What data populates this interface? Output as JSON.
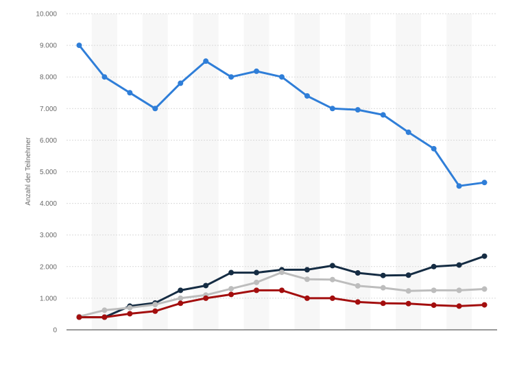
{
  "chart_data": {
    "type": "line",
    "title": "",
    "xlabel": "",
    "ylabel": "Anzahl der Teilnehmer",
    "ylim": [
      0,
      10000
    ],
    "yticks": [
      0,
      1000,
      2000,
      3000,
      4000,
      5000,
      6000,
      7000,
      8000,
      9000,
      10000
    ],
    "ytick_labels": [
      "0",
      "1.000",
      "2.000",
      "3.000",
      "4.000",
      "5.000",
      "6.000",
      "7.000",
      "8.000",
      "9.000",
      "10.000"
    ],
    "x": [
      1,
      2,
      3,
      4,
      5,
      6,
      7,
      8,
      9,
      10,
      11,
      12,
      13,
      14,
      15,
      16,
      17
    ],
    "grid": true,
    "legend": "none",
    "series": [
      {
        "color": "#2f7ed8",
        "values": [
          9000,
          8000,
          7500,
          7000,
          7800,
          8500,
          8000,
          8180,
          8000,
          7400,
          7000,
          6960,
          6800,
          6250,
          5730,
          4550,
          4660
        ]
      },
      {
        "color": "#152c43",
        "values": [
          400,
          400,
          750,
          850,
          1250,
          1400,
          1810,
          1810,
          1900,
          1900,
          2030,
          1800,
          1720,
          1730,
          2000,
          2050,
          2330
        ]
      },
      {
        "color": "#bdbdbd",
        "values": [
          420,
          620,
          700,
          800,
          1000,
          1100,
          1300,
          1500,
          1820,
          1600,
          1590,
          1390,
          1330,
          1230,
          1250,
          1250,
          1290
        ]
      },
      {
        "color": "#a30e0e",
        "values": [
          400,
          400,
          510,
          590,
          840,
          1000,
          1120,
          1250,
          1250,
          1000,
          1000,
          880,
          840,
          830,
          780,
          750,
          790
        ]
      }
    ]
  }
}
